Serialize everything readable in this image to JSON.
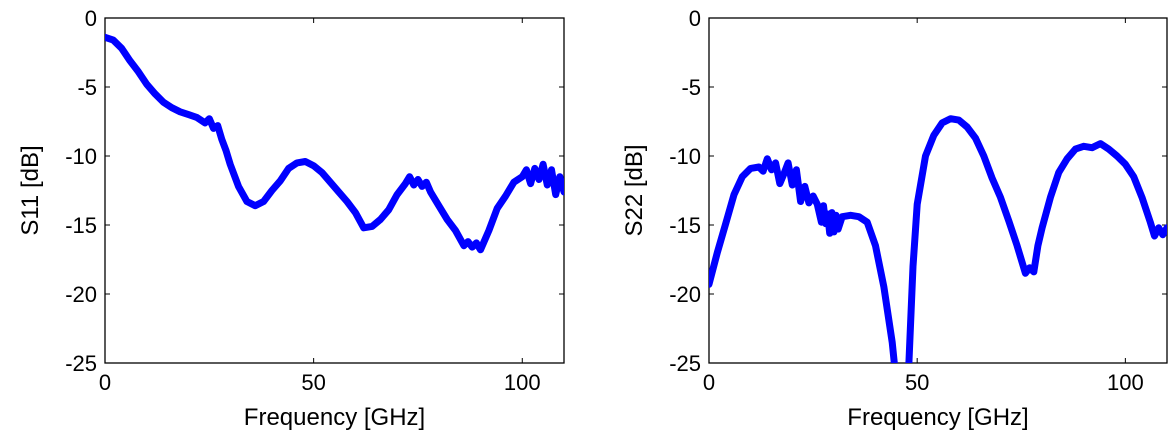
{
  "chart_data": [
    {
      "type": "line",
      "xlabel": "Frequency [GHz]",
      "ylabel": "S11 [dB]",
      "xlim": [
        0,
        110
      ],
      "ylim": [
        -25,
        0
      ],
      "xticks": [
        0,
        50,
        100
      ],
      "yticks": [
        0,
        -5,
        -10,
        -15,
        -20,
        -25
      ],
      "grid": false,
      "series": [
        {
          "color": "#0000ff",
          "x": [
            0,
            2,
            4,
            6,
            8,
            10,
            12,
            14,
            16,
            18,
            20,
            22,
            24,
            25,
            26,
            27,
            28,
            29,
            30,
            32,
            34,
            36,
            38,
            40,
            42,
            44,
            46,
            48,
            50,
            52,
            54,
            56,
            58,
            60,
            62,
            64,
            66,
            68,
            70,
            72,
            73,
            74,
            75,
            76,
            77,
            78,
            80,
            82,
            84,
            86,
            87,
            88,
            89,
            90,
            92,
            94,
            96,
            98,
            100,
            101,
            102,
            103,
            104,
            105,
            106,
            107,
            108,
            109,
            110
          ],
          "y": [
            -1.4,
            -1.6,
            -2.2,
            -3.1,
            -3.9,
            -4.8,
            -5.5,
            -6.1,
            -6.5,
            -6.8,
            -7.0,
            -7.2,
            -7.6,
            -7.3,
            -8.0,
            -7.8,
            -8.8,
            -9.6,
            -10.6,
            -12.2,
            -13.3,
            -13.6,
            -13.3,
            -12.5,
            -11.8,
            -10.9,
            -10.5,
            -10.4,
            -10.7,
            -11.2,
            -11.9,
            -12.6,
            -13.3,
            -14.1,
            -15.2,
            -15.1,
            -14.6,
            -13.9,
            -12.8,
            -12.0,
            -11.5,
            -12.1,
            -11.7,
            -12.2,
            -11.9,
            -12.6,
            -13.6,
            -14.6,
            -15.4,
            -16.5,
            -16.2,
            -16.6,
            -16.3,
            -16.8,
            -15.4,
            -13.8,
            -12.9,
            -11.9,
            -11.5,
            -11.0,
            -12.0,
            -10.9,
            -11.7,
            -10.6,
            -12.1,
            -11.0,
            -12.8,
            -11.5,
            -12.6
          ]
        }
      ]
    },
    {
      "type": "line",
      "xlabel": "Frequency [GHz]",
      "ylabel": "S22 [dB]",
      "xlim": [
        0,
        110
      ],
      "ylim": [
        -25,
        0
      ],
      "xticks": [
        0,
        50,
        100
      ],
      "yticks": [
        0,
        -5,
        -10,
        -15,
        -20,
        -25
      ],
      "grid": false,
      "series": [
        {
          "color": "#0000ff",
          "x": [
            0,
            2,
            4,
            6,
            8,
            10,
            12,
            13,
            14,
            15,
            16,
            17,
            18,
            19,
            20,
            21,
            22,
            23,
            24,
            25,
            26,
            27,
            27.5,
            28,
            28.5,
            29,
            29.5,
            30,
            30.5,
            31,
            32,
            34,
            36,
            38,
            40,
            42,
            44,
            44.5,
            45,
            46,
            47,
            48,
            49,
            50,
            52,
            54,
            56,
            58,
            60,
            62,
            64,
            66,
            68,
            70,
            72,
            74,
            76,
            77,
            78,
            79,
            80,
            82,
            84,
            86,
            88,
            90,
            92,
            94,
            96,
            98,
            100,
            102,
            104,
            106,
            107,
            108,
            109,
            110
          ],
          "y": [
            -19.3,
            -17.0,
            -14.9,
            -12.8,
            -11.5,
            -10.9,
            -10.8,
            -11.1,
            -10.2,
            -11.0,
            -10.5,
            -12.0,
            -11.3,
            -10.5,
            -12.1,
            -11.0,
            -13.3,
            -12.2,
            -13.4,
            -12.9,
            -13.5,
            -14.8,
            -13.6,
            -14.9,
            -14.2,
            -15.6,
            -14.1,
            -15.5,
            -14.3,
            -15.3,
            -14.4,
            -14.3,
            -14.4,
            -14.8,
            -16.5,
            -19.5,
            -23.5,
            -25.0,
            -27.0,
            -31.0,
            -30.0,
            -25.0,
            -18.0,
            -13.5,
            -10.0,
            -8.5,
            -7.6,
            -7.3,
            -7.4,
            -7.9,
            -8.7,
            -10.0,
            -11.6,
            -13.0,
            -14.7,
            -16.5,
            -18.5,
            -18.1,
            -18.4,
            -16.5,
            -15.2,
            -13.0,
            -11.2,
            -10.2,
            -9.5,
            -9.3,
            -9.4,
            -9.1,
            -9.5,
            -10.0,
            -10.6,
            -11.5,
            -13.0,
            -14.8,
            -15.8,
            -15.2,
            -15.7,
            -15.2
          ]
        }
      ]
    }
  ]
}
